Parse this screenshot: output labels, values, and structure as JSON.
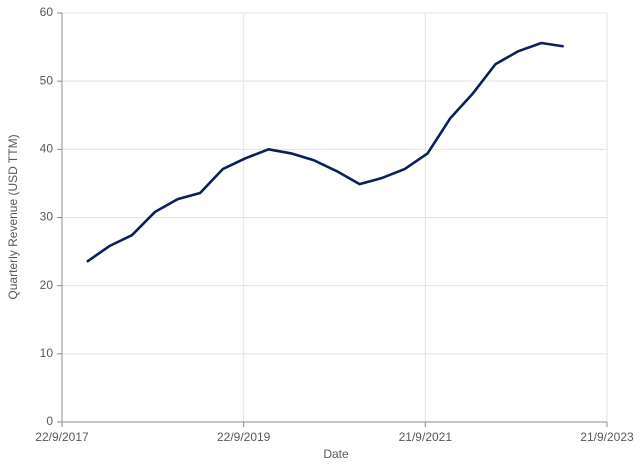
{
  "chart_data": {
    "type": "line",
    "x_label": "Date",
    "y_label": "Quarterly Revenue (USD TTM)",
    "x": [
      "2017-12-31",
      "2018-03-31",
      "2018-06-30",
      "2018-09-30",
      "2018-12-31",
      "2019-03-31",
      "2019-06-30",
      "2019-09-30",
      "2019-12-31",
      "2020-03-31",
      "2020-06-30",
      "2020-09-30",
      "2020-12-31",
      "2021-03-31",
      "2021-06-30",
      "2021-09-30",
      "2021-12-31",
      "2022-03-31",
      "2022-06-30",
      "2022-09-30",
      "2022-12-31",
      "2023-03-31"
    ],
    "series": [
      {
        "color": "#0b1f5b",
        "values": [
          23.5,
          25.8,
          27.4,
          30.8,
          32.7,
          33.6,
          37.1,
          38.7,
          40.0,
          39.4,
          38.4,
          36.8,
          34.9,
          35.8,
          37.1,
          39.4,
          44.6,
          48.2,
          52.5,
          54.4,
          55.6,
          55.1
        ]
      }
    ],
    "xlim": [
      "2017-09-22",
      "2023-09-21"
    ],
    "xticks": [
      {
        "value": "2017-09-22",
        "label": "22/9/2017"
      },
      {
        "value": "2019-09-22",
        "label": "22/9/2019"
      },
      {
        "value": "2021-09-21",
        "label": "21/9/2021"
      },
      {
        "value": "2023-09-21",
        "label": "21/9/2023"
      }
    ],
    "ylim": [
      0,
      60
    ],
    "yticks": [
      0,
      10,
      20,
      30,
      40,
      50,
      60
    ],
    "grid": true
  }
}
